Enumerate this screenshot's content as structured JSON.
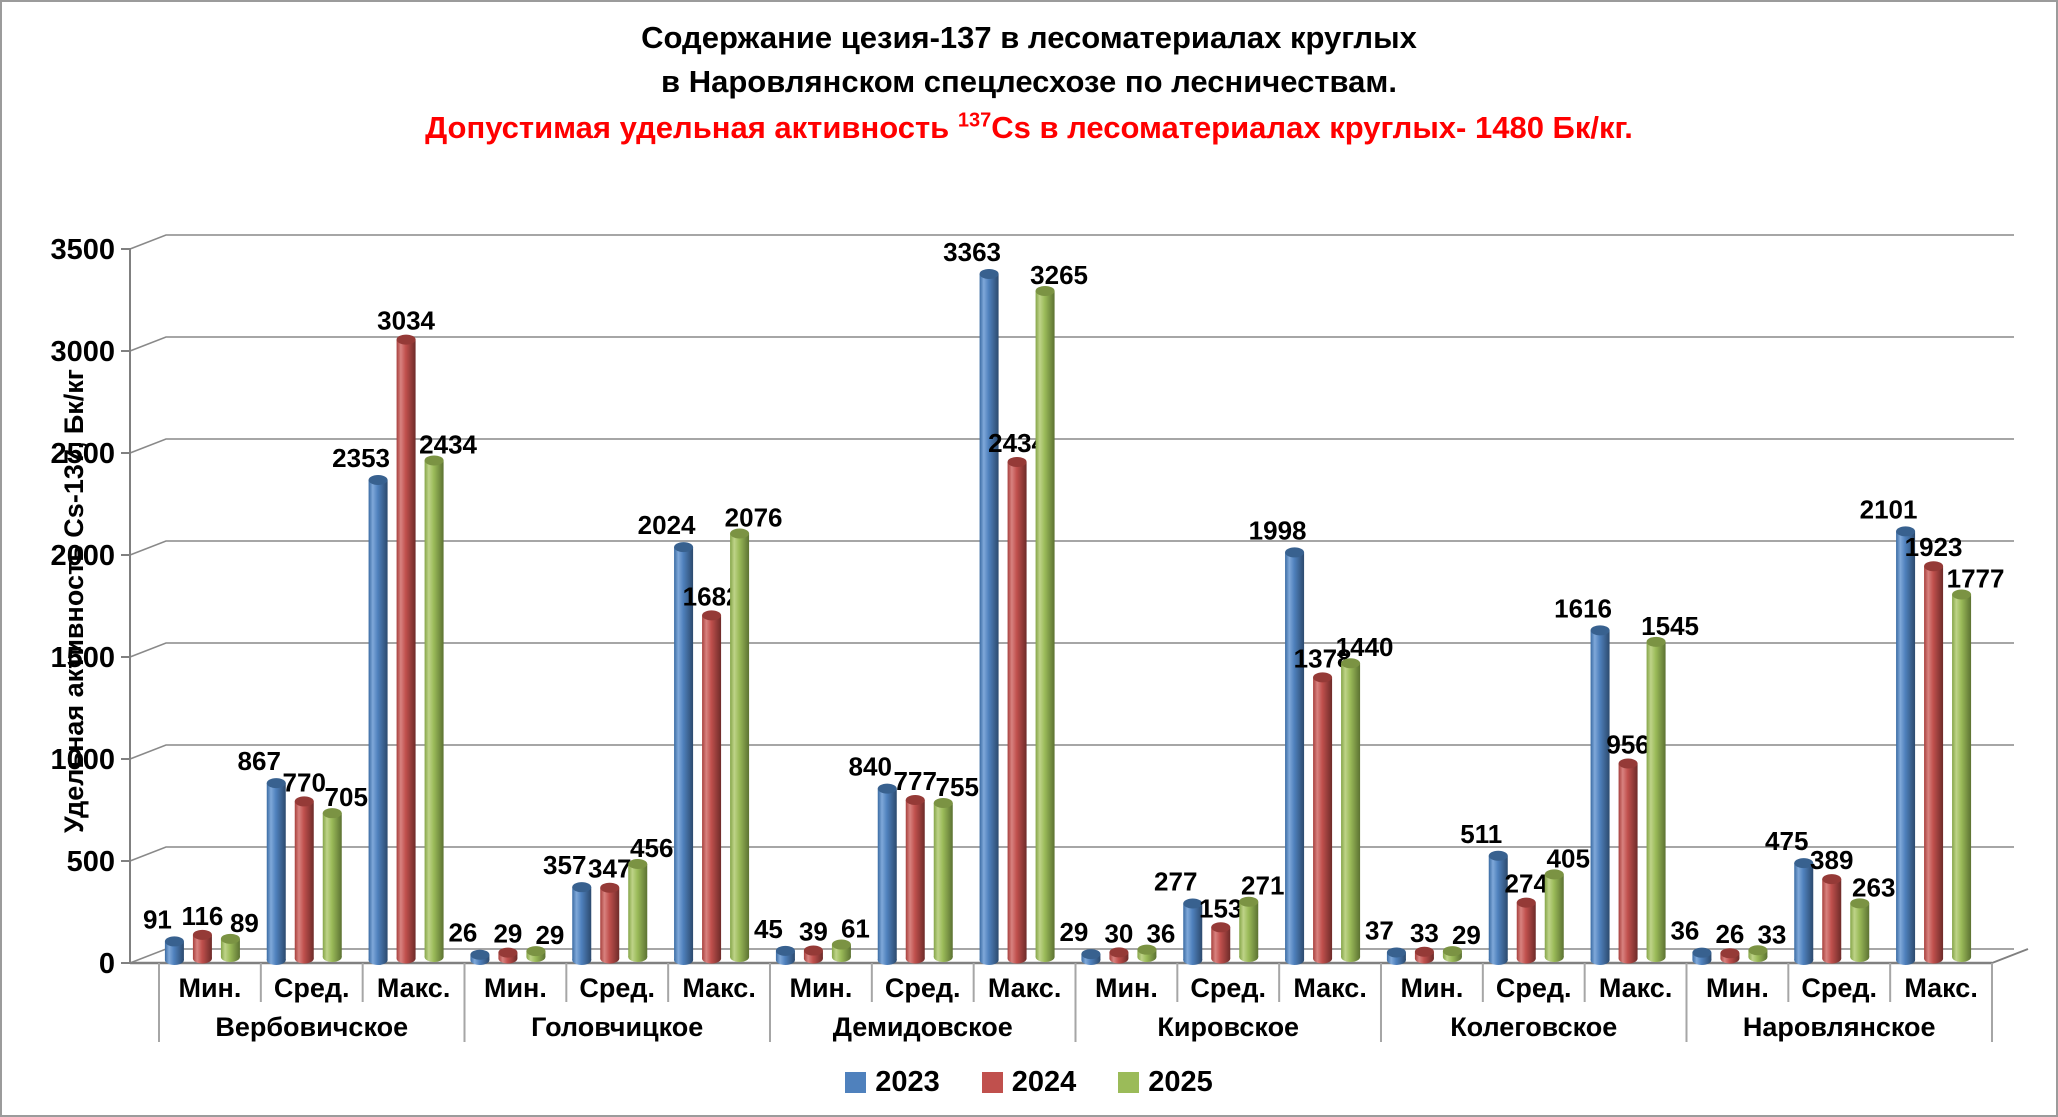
{
  "title": {
    "line1": "Содержание цезия-137 в лесоматериалах круглых",
    "line2": "в Наровлянском спецлесхозе по лесничествам.",
    "warning_prefix": "Допустимая удельная активность ",
    "warning_sup": "137",
    "warning_suffix": "Cs в лесоматериалах круглых- 1480 Бк/кг."
  },
  "colors": {
    "warning_text": "#ff0000",
    "axis_line": "#808080",
    "gridline": "#898989",
    "table_border": "#a6a6a6",
    "label_text": "#000000"
  },
  "chart_data": {
    "type": "bar",
    "subtype": "3d-cylinder",
    "title": "Содержание цезия-137 в лесоматериалах круглых в Наровлянском спецлесхозе по лесничествам.",
    "subtitle": "Допустимая удельная активность 137Cs в лесоматериалах круглых- 1480 Бк/кг.",
    "ylabel": "Удельная активность Cs-137, Бк/кг",
    "xlabel": "",
    "ylim": [
      0,
      3500
    ],
    "ytick_step": 500,
    "yticks": [
      0,
      500,
      1000,
      1500,
      2000,
      2500,
      3000,
      3500
    ],
    "grid": true,
    "legend_position": "bottom",
    "groups": [
      "Вербовичское",
      "Головчицкое",
      "Демидовское",
      "Кировское",
      "Колеговское",
      "Наровлянское"
    ],
    "subcategories": [
      "Мин.",
      "Сред.",
      "Макс."
    ],
    "series": [
      {
        "name": "2023",
        "color": "#4F81BD",
        "values": [
          [
            91,
            867,
            2353
          ],
          [
            26,
            357,
            2024
          ],
          [
            45,
            840,
            3363
          ],
          [
            29,
            277,
            1998
          ],
          [
            37,
            511,
            1616
          ],
          [
            36,
            475,
            2101
          ]
        ]
      },
      {
        "name": "2024",
        "color": "#C0504D",
        "values": [
          [
            116,
            770,
            3034
          ],
          [
            29,
            347,
            1682
          ],
          [
            39,
            777,
            2434
          ],
          [
            30,
            153,
            1378
          ],
          [
            33,
            274,
            956
          ],
          [
            26,
            389,
            1923
          ]
        ]
      },
      {
        "name": "2025",
        "color": "#9BBB59",
        "values": [
          [
            89,
            705,
            2434
          ],
          [
            29,
            456,
            2076
          ],
          [
            61,
            755,
            3265
          ],
          [
            36,
            271,
            1440
          ],
          [
            29,
            405,
            1545
          ],
          [
            33,
            263,
            1777
          ]
        ]
      }
    ]
  }
}
